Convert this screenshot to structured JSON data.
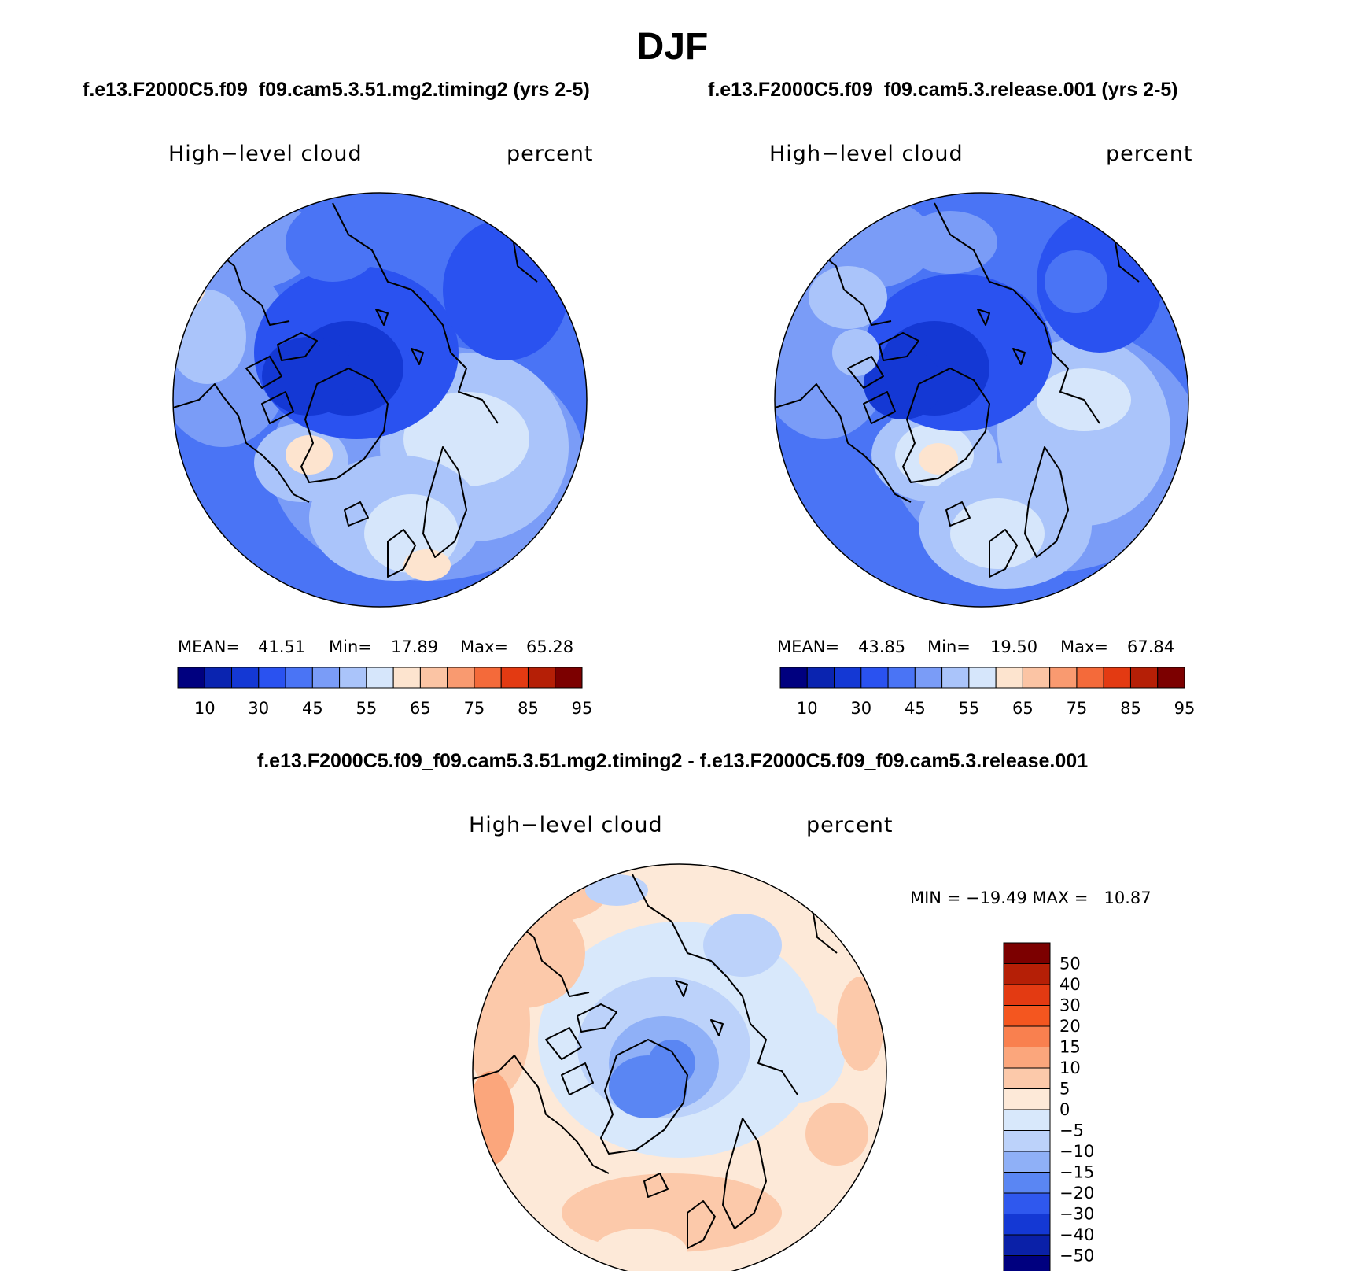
{
  "figure": {
    "title": "DJF",
    "panels": [
      {
        "case_title": "f.e13.F2000C5.f09_f09.cam5.3.51.mg2.timing2 (yrs 2-5)",
        "variable": "High−level cloud",
        "units": "percent",
        "stats": {
          "mean_label": "MEAN=",
          "mean": "41.51",
          "min_label": "Min=",
          "min": "17.89",
          "max_label": "Max=",
          "max": "65.28"
        }
      },
      {
        "case_title": "f.e13.F2000C5.f09_f09.cam5.3.release.001 (yrs 2-5)",
        "variable": "High−level cloud",
        "units": "percent",
        "stats": {
          "mean_label": "MEAN=",
          "mean": "43.85",
          "min_label": "Min=",
          "min": "19.50",
          "max_label": "Max=",
          "max": "67.84"
        }
      }
    ],
    "colorbar": {
      "tick_labels": [
        "10",
        "30",
        "45",
        "55",
        "65",
        "75",
        "85",
        "95"
      ],
      "colors": [
        "#00007f",
        "#0a24b0",
        "#1438d4",
        "#2a52f0",
        "#4a74f5",
        "#7a9cf7",
        "#aac4fa",
        "#d6e6fb",
        "#fde4cf",
        "#fbc4a4",
        "#f99a70",
        "#f46a3a",
        "#e33a12",
        "#b51f06",
        "#7c0000"
      ]
    },
    "difference": {
      "title": "f.e13.F2000C5.f09_f09.cam5.3.51.mg2.timing2 - f.e13.F2000C5.f09_f09.cam5.3.release.001",
      "variable": "High−level cloud",
      "units": "percent",
      "minmax_text": "MIN = −19.49 MAX =   10.87",
      "colorbar": {
        "tick_labels": [
          "50",
          "40",
          "30",
          "20",
          "15",
          "10",
          "5",
          "0",
          "−5",
          "−10",
          "−15",
          "−20",
          "−30",
          "−40",
          "−50"
        ],
        "colors": [
          "#7c0000",
          "#b51f06",
          "#e33a12",
          "#f4561f",
          "#f9804f",
          "#fba67c",
          "#fcc9aa",
          "#fde9d8",
          "#d8e8fb",
          "#bcd2fa",
          "#8fb0f7",
          "#5a86f3",
          "#2f58ee",
          "#1438d4",
          "#0a20a8",
          "#00007f"
        ]
      }
    }
  }
}
